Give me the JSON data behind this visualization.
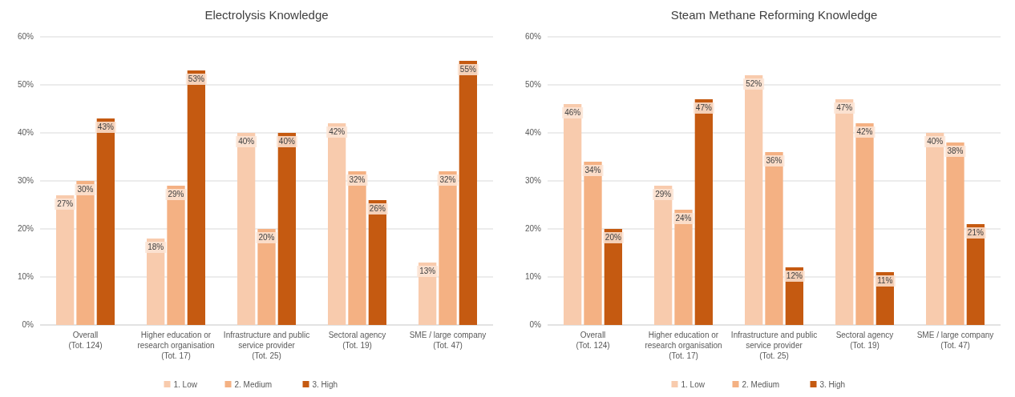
{
  "chart_data": [
    {
      "type": "bar",
      "title": "Electrolysis Knowledge",
      "categories": [
        "Overall\n(Tot. 124)",
        "Higher education or\nresearch organisation\n(Tot. 17)",
        "Infrastructure and public\nservice provider\n(Tot. 25)",
        "Sectoral agency\n(Tot. 19)",
        "SME / large company\n(Tot. 47)"
      ],
      "series": [
        {
          "name": "1. Low",
          "color": "#f8cbad",
          "values": [
            27,
            18,
            40,
            42,
            13
          ],
          "value_labels": [
            "27%",
            "18%",
            "40%",
            "42%",
            "13%"
          ]
        },
        {
          "name": "2. Medium",
          "color": "#f4b183",
          "values": [
            30,
            29,
            20,
            32,
            32
          ],
          "value_labels": [
            "30%",
            "29%",
            "20%",
            "32%",
            "32%"
          ]
        },
        {
          "name": "3. High",
          "color": "#c55a11",
          "values": [
            43,
            53,
            40,
            26,
            55
          ],
          "value_labels": [
            "43%",
            "53%",
            "40%",
            "26%",
            "55%"
          ]
        }
      ],
      "ylim": [
        0,
        60
      ],
      "yticks": [
        {
          "value": 0,
          "label": "0%"
        },
        {
          "value": 10,
          "label": "10%"
        },
        {
          "value": 20,
          "label": "20%"
        },
        {
          "value": 30,
          "label": "30%"
        },
        {
          "value": 40,
          "label": "40%"
        },
        {
          "value": 50,
          "label": "50%"
        },
        {
          "value": 60,
          "label": "60%"
        }
      ],
      "grid": "y",
      "legend": "bottom"
    },
    {
      "type": "bar",
      "title": "Steam Methane Reforming Knowledge",
      "categories": [
        "Overall\n(Tot. 124)",
        "Higher education or\nresearch organisation\n(Tot. 17)",
        "Infrastructure and public\nservice provider\n(Tot. 25)",
        "Sectoral agency\n(Tot. 19)",
        "SME / large company\n(Tot. 47)"
      ],
      "series": [
        {
          "name": "1. Low",
          "color": "#f8cbad",
          "values": [
            46,
            29,
            52,
            47,
            40
          ],
          "value_labels": [
            "46%",
            "29%",
            "52%",
            "47%",
            "40%"
          ]
        },
        {
          "name": "2. Medium",
          "color": "#f4b183",
          "values": [
            34,
            24,
            36,
            42,
            38
          ],
          "value_labels": [
            "34%",
            "24%",
            "36%",
            "42%",
            "38%"
          ]
        },
        {
          "name": "3. High",
          "color": "#c55a11",
          "values": [
            20,
            47,
            12,
            11,
            21
          ],
          "value_labels": [
            "20%",
            "47%",
            "12%",
            "11%",
            "21%"
          ]
        }
      ],
      "ylim": [
        0,
        60
      ],
      "yticks": [
        {
          "value": 0,
          "label": "0%"
        },
        {
          "value": 10,
          "label": "10%"
        },
        {
          "value": 20,
          "label": "20%"
        },
        {
          "value": 30,
          "label": "30%"
        },
        {
          "value": 40,
          "label": "40%"
        },
        {
          "value": 50,
          "label": "50%"
        },
        {
          "value": 60,
          "label": "60%"
        }
      ],
      "grid": "y",
      "legend": "bottom"
    }
  ]
}
